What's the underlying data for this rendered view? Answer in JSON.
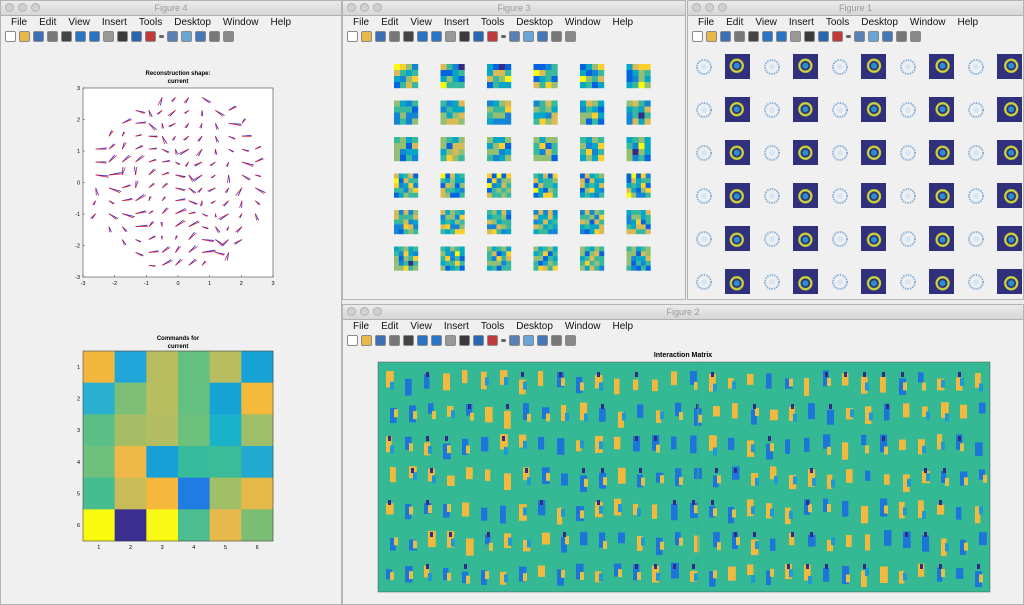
{
  "windows": {
    "fig4": {
      "title": "Figure 4"
    },
    "fig3": {
      "title": "Figure 3"
    },
    "fig1": {
      "title": "Figure 1"
    },
    "fig2": {
      "title": "Figure 2"
    }
  },
  "menu": [
    "File",
    "Edit",
    "View",
    "Insert",
    "Tools",
    "Desktop",
    "Window",
    "Help"
  ],
  "toolbar_icons": [
    "new-figure-icon",
    "open-file-icon",
    "save-icon",
    "print-icon",
    "pointer-icon",
    "zoom-in-icon",
    "zoom-out-icon",
    "pan-icon",
    "rotate-icon",
    "data-cursor-icon",
    "brush-icon",
    "brush-dropdown-icon",
    "link-plot-icon",
    "colorbar-icon",
    "legend-icon",
    "hide-plot-tools-icon",
    "show-plot-tools-icon"
  ],
  "colors": {
    "quiver_blue": "#1f1fdc",
    "quiver_red": "#e0202a",
    "parula_low": "#352a87",
    "parula_high": "#f9fb0e"
  },
  "fig4": {
    "quiver": {
      "title_line1": "Reconstruction shape:",
      "title_line2": "current",
      "x_ticks": [
        "-3",
        "-2",
        "-1",
        "0",
        "1",
        "2",
        "3"
      ],
      "y_ticks": [
        "3",
        "2",
        "1",
        "0",
        "-1",
        "-2",
        "-3"
      ],
      "xlim": [
        -3,
        3
      ],
      "ylim": [
        -3,
        3
      ]
    },
    "commands": {
      "title_line1": "Commands for",
      "title_line2": "current",
      "x_ticks": [
        "1",
        "2",
        "3",
        "4",
        "5",
        "6"
      ],
      "y_ticks": [
        "1",
        "2",
        "3",
        "4",
        "5",
        "6"
      ],
      "cells": [
        [
          "#f2b63c",
          "#20a6d8",
          "#b8bd5f",
          "#63c07f",
          "#b8bd5f",
          "#16a2d5"
        ],
        [
          "#29afcf",
          "#7dbf74",
          "#b7be5f",
          "#64c07f",
          "#16a4d6",
          "#f6ba3b"
        ],
        [
          "#5cc086",
          "#a6bd65",
          "#b3bd62",
          "#6dc07c",
          "#1ab2ca",
          "#9fbe68"
        ],
        [
          "#6fc07c",
          "#eeb848",
          "#17a0d7",
          "#36bb9c",
          "#3cbb98",
          "#21a9d1"
        ],
        [
          "#46bc91",
          "#c8bb58",
          "#f5b73c",
          "#1e7ce2",
          "#a1bf67",
          "#e5b84a"
        ],
        [
          "#f9fb0e",
          "#3a2f90",
          "#f8f914",
          "#4bbd8e",
          "#e7b94d",
          "#7bbf75"
        ]
      ]
    }
  },
  "fig2": {
    "title": "Interaction Matrix"
  }
}
